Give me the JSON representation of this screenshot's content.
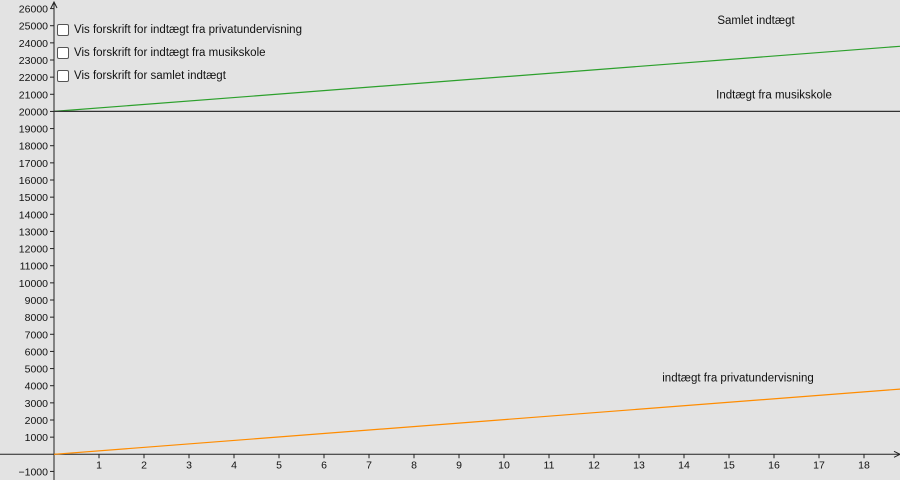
{
  "checkboxes": [
    {
      "label": "Vis forskrift for indtægt fra privatundervisning",
      "checked": false
    },
    {
      "label": "Vis forskrift for indtægt fra musikskole",
      "checked": false
    },
    {
      "label": "Vis forskrift for samlet indtægt",
      "checked": false
    }
  ],
  "chart_data": {
    "type": "line",
    "title": "",
    "xlabel": "",
    "ylabel": "",
    "xlim": [
      -1.2,
      18.8
    ],
    "ylim": [
      -1500,
      26500
    ],
    "x_ticks": [
      1,
      2,
      3,
      4,
      5,
      6,
      7,
      8,
      9,
      10,
      11,
      12,
      13,
      14,
      15,
      16,
      17,
      18
    ],
    "y_ticks": [
      -1000,
      1000,
      2000,
      3000,
      4000,
      5000,
      6000,
      7000,
      8000,
      9000,
      10000,
      11000,
      12000,
      13000,
      14000,
      15000,
      16000,
      17000,
      18000,
      19000,
      20000,
      21000,
      22000,
      23000,
      24000,
      25000,
      26000
    ],
    "grid": false,
    "series": [
      {
        "name": "Samlet indtægt",
        "color": "#2ca02c",
        "x": [
          0,
          18.8
        ],
        "y": [
          20000,
          23800
        ]
      },
      {
        "name": "Indtægt fra musikskole",
        "color": "#333333",
        "x": [
          0,
          18.8
        ],
        "y": [
          20000,
          20000
        ]
      },
      {
        "name": "indtægt fra privatundervisning",
        "color": "#ff8c00",
        "x": [
          0,
          18.8
        ],
        "y": [
          0,
          3800
        ]
      }
    ]
  }
}
